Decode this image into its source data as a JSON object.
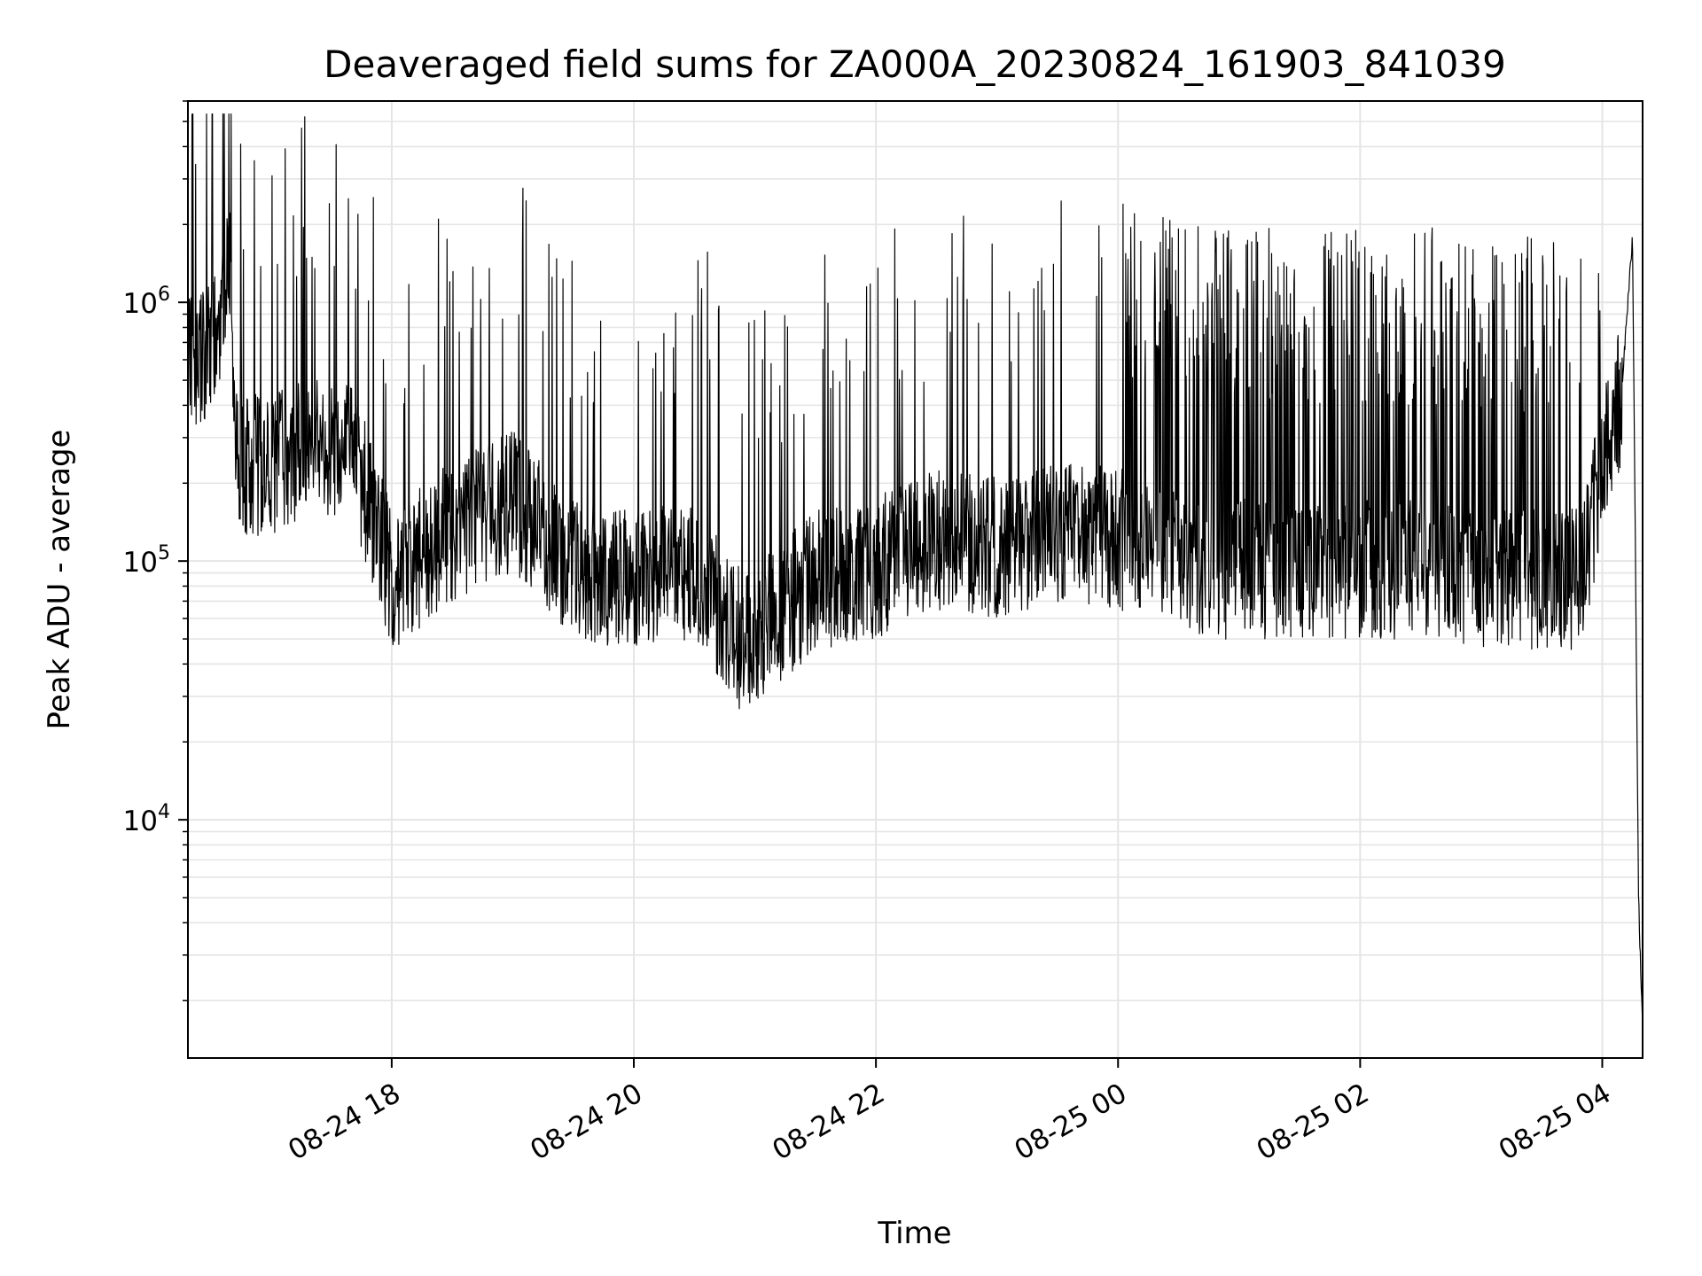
{
  "chart_data": {
    "type": "line",
    "title": "Deaveraged field sums for ZA000A_20230824_161903_841039",
    "xlabel": "Time",
    "ylabel": "Peak ADU - average",
    "yscale": "log",
    "ylim": [
      1200,
      6000000
    ],
    "xlim": [
      "2023-08-24 16:19",
      "2023-08-25 04:20"
    ],
    "x_ticks": [
      "08-24 18",
      "08-24 20",
      "08-24 22",
      "08-25 00",
      "08-25 02",
      "08-25 04"
    ],
    "x_tick_times": [
      "2023-08-24 18:00",
      "2023-08-24 20:00",
      "2023-08-24 22:00",
      "2023-08-25 00:00",
      "2023-08-25 02:00",
      "2023-08-25 04:00"
    ],
    "y_ticks": [
      {
        "value": 10000,
        "base": "10",
        "exp": "4"
      },
      {
        "value": 100000,
        "base": "10",
        "exp": "5"
      },
      {
        "value": 1000000,
        "base": "10",
        "exp": "6"
      }
    ],
    "grid": true,
    "line_color": "#000000",
    "grid_color": "#e5e5e5",
    "series": [
      {
        "x": [
          "2023-08-24 16:19",
          "2023-08-24 16:32",
          "2023-08-24 16:40",
          "2023-08-24 16:43",
          "2023-08-24 16:50",
          "2023-08-24 17:00",
          "2023-08-24 17:20",
          "2023-08-24 17:40",
          "2023-08-24 18:00",
          "2023-08-24 18:30",
          "2023-08-24 19:00",
          "2023-08-24 19:30",
          "2023-08-24 20:00",
          "2023-08-24 20:30",
          "2023-08-24 20:55",
          "2023-08-24 21:30",
          "2023-08-24 22:00",
          "2023-08-24 22:30",
          "2023-08-24 23:00",
          "2023-08-24 23:30",
          "2023-08-25 00:00",
          "2023-08-25 00:40",
          "2023-08-25 01:30",
          "2023-08-25 02:30",
          "2023-08-25 03:20",
          "2023-08-25 03:50",
          "2023-08-25 04:00",
          "2023-08-25 04:10",
          "2023-08-25 04:15",
          "2023-08-25 04:18",
          "2023-08-25 04:20"
        ],
        "y": [
          600000,
          750000,
          1500000,
          250000,
          250000,
          250000,
          300000,
          300000,
          90000,
          140000,
          180000,
          100000,
          90000,
          100000,
          50000,
          90000,
          100000,
          130000,
          120000,
          140000,
          130000,
          100000,
          100000,
          100000,
          90000,
          90000,
          250000,
          500000,
          1800000,
          5000,
          1500
        ]
      }
    ]
  }
}
